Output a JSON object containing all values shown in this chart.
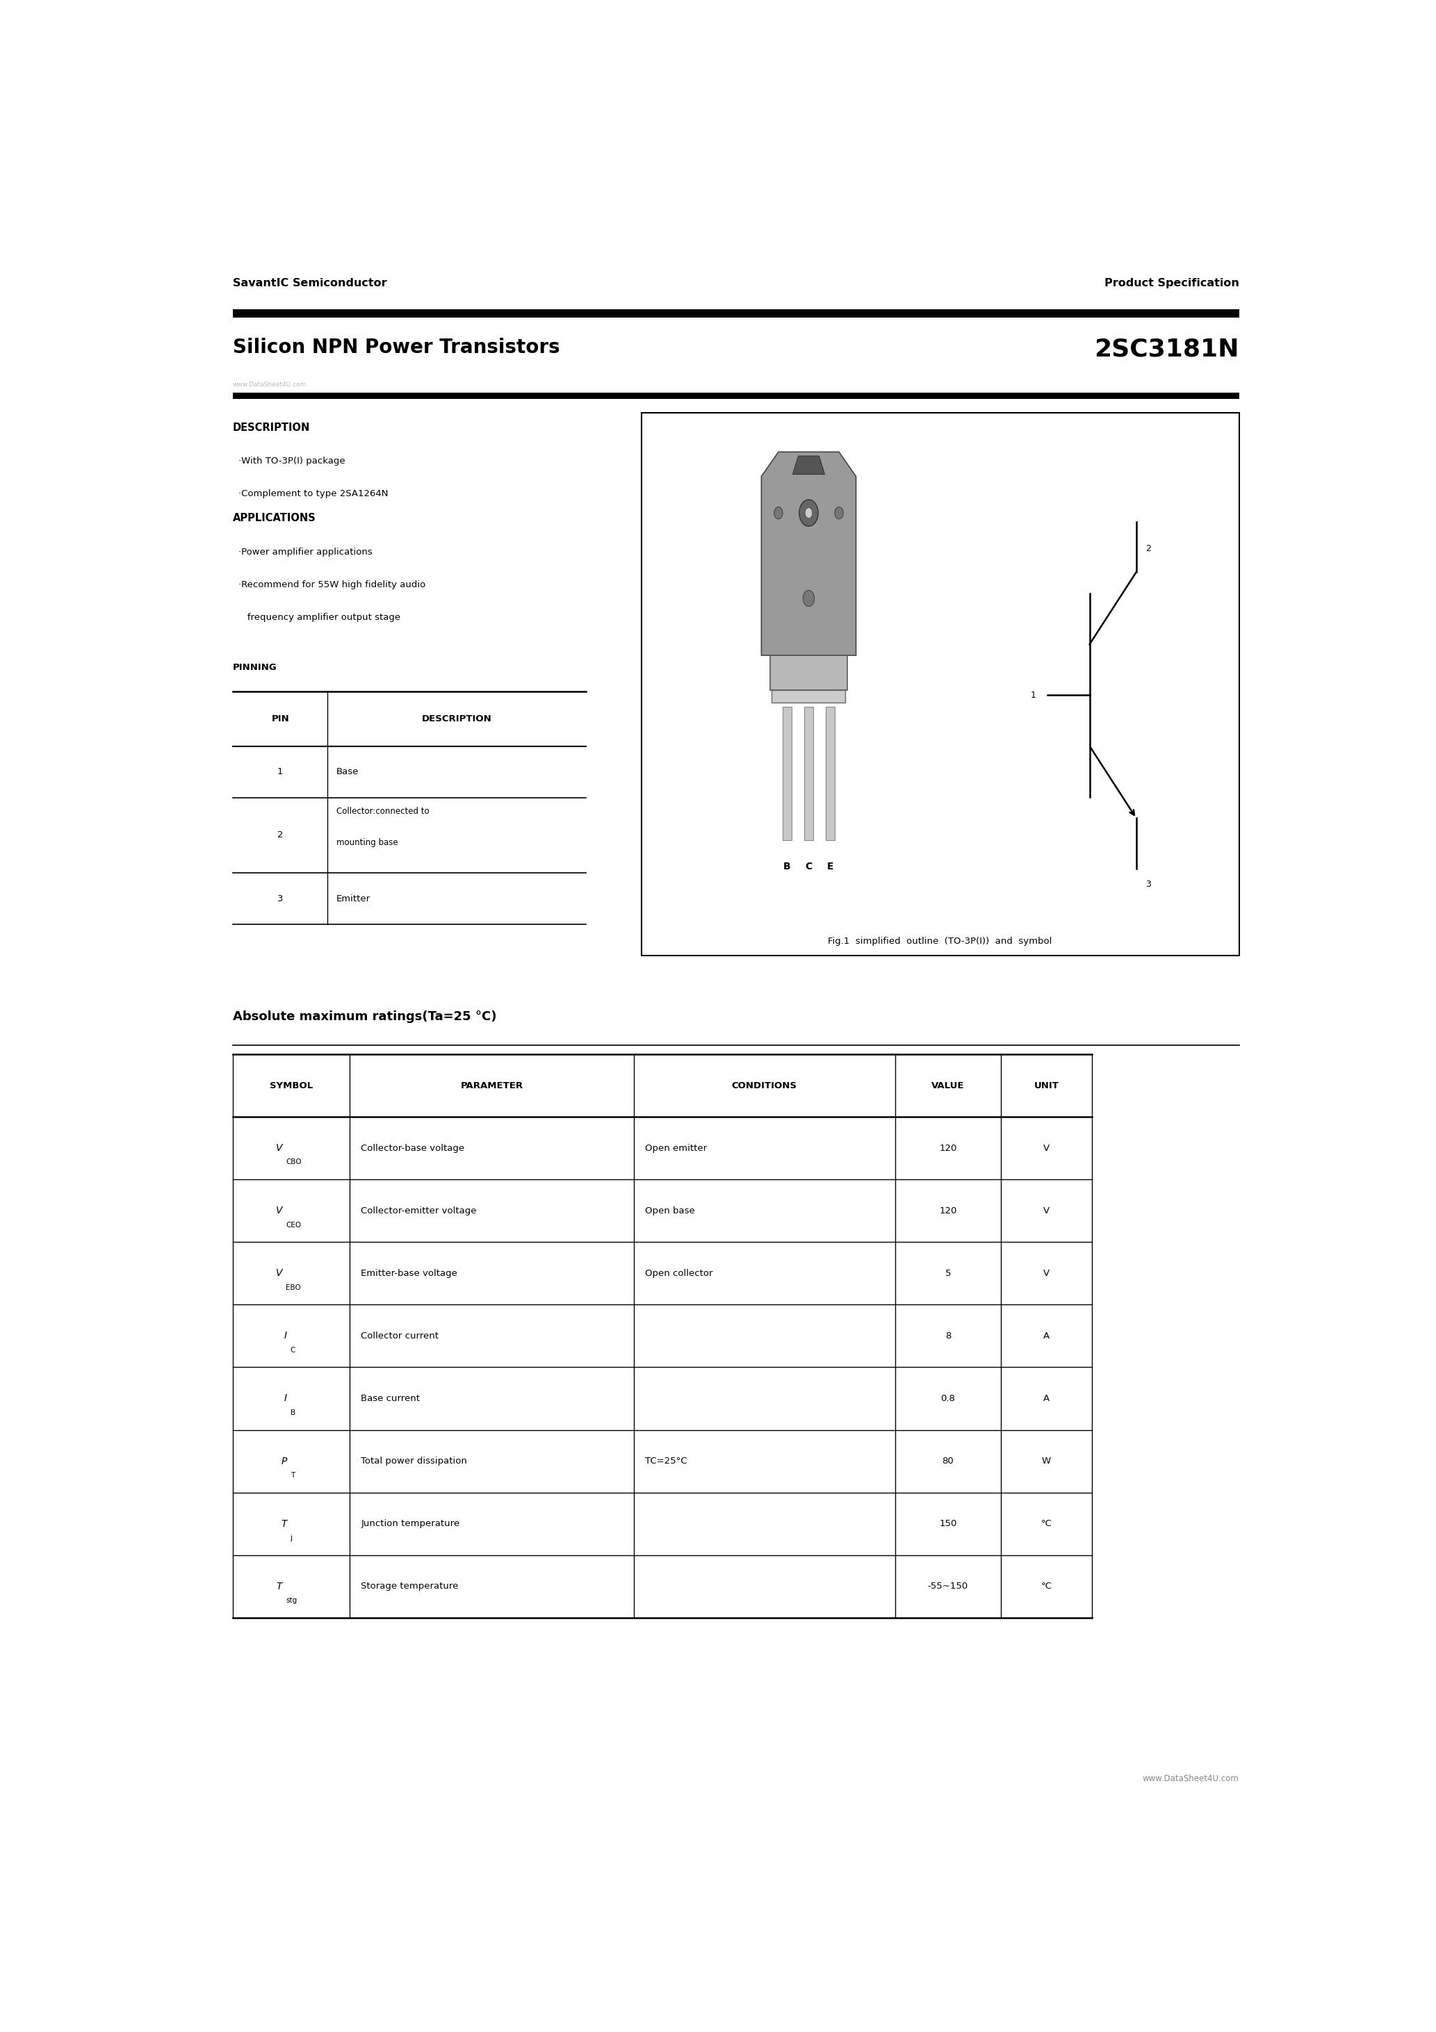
{
  "page_width": 20.66,
  "page_height": 29.24,
  "bg_color": "#ffffff",
  "header_company": "SavantIC Semiconductor",
  "header_product": "Product Specification",
  "title_left": "Silicon NPN Power Transistors",
  "title_right": "2SC3181N",
  "subtitle_watermark": "www.DataSheet4U.com",
  "description_title": "DESCRIPTION",
  "description_items": [
    "·With TO-3P(I) package",
    "·Complement to type 2SA1264N"
  ],
  "applications_title": "APPLICATIONS",
  "applications_items": [
    "·Power amplifier applications",
    "·Recommend for 55W high fidelity audio",
    "   frequency amplifier output stage"
  ],
  "pinning_title": "PINNING",
  "pin_headers": [
    "PIN",
    "DESCRIPTION"
  ],
  "pin_rows": [
    [
      "1",
      "Base"
    ],
    [
      "2",
      "Collector:connected to\nmounting base"
    ],
    [
      "3",
      "Emitter"
    ]
  ],
  "fig_caption": "Fig.1  simplified  outline  (TO-3P(I))  and  symbol",
  "abs_max_title": "Absolute maximum ratings(Ta=25 °C)",
  "table_headers": [
    "SYMBOL",
    "PARAMETER",
    "CONDITIONS",
    "VALUE",
    "UNIT"
  ],
  "table_symbol_subs": [
    {
      "base": "V",
      "sub": "CBO"
    },
    {
      "base": "V",
      "sub": "CEO"
    },
    {
      "base": "V",
      "sub": "EBO"
    },
    {
      "base": "I",
      "sub": "C"
    },
    {
      "base": "I",
      "sub": "B"
    },
    {
      "base": "P",
      "sub": "T"
    },
    {
      "base": "T",
      "sub": "j"
    },
    {
      "base": "T",
      "sub": "stg"
    }
  ],
  "table_params": [
    "Collector-base voltage",
    "Collector-emitter voltage",
    "Emitter-base voltage",
    "Collector current",
    "Base current",
    "Total power dissipation",
    "Junction temperature",
    "Storage temperature"
  ],
  "table_conditions": [
    "Open emitter",
    "Open base",
    "Open collector",
    "",
    "",
    "TC=25°C",
    "",
    ""
  ],
  "table_values": [
    "120",
    "120",
    "5",
    "8",
    "0.8",
    "80",
    "150",
    "-55~150"
  ],
  "table_units": [
    "V",
    "V",
    "V",
    "A",
    "A",
    "W",
    "°C",
    "°C"
  ],
  "footer_url": "www.DataSheet4U.com"
}
